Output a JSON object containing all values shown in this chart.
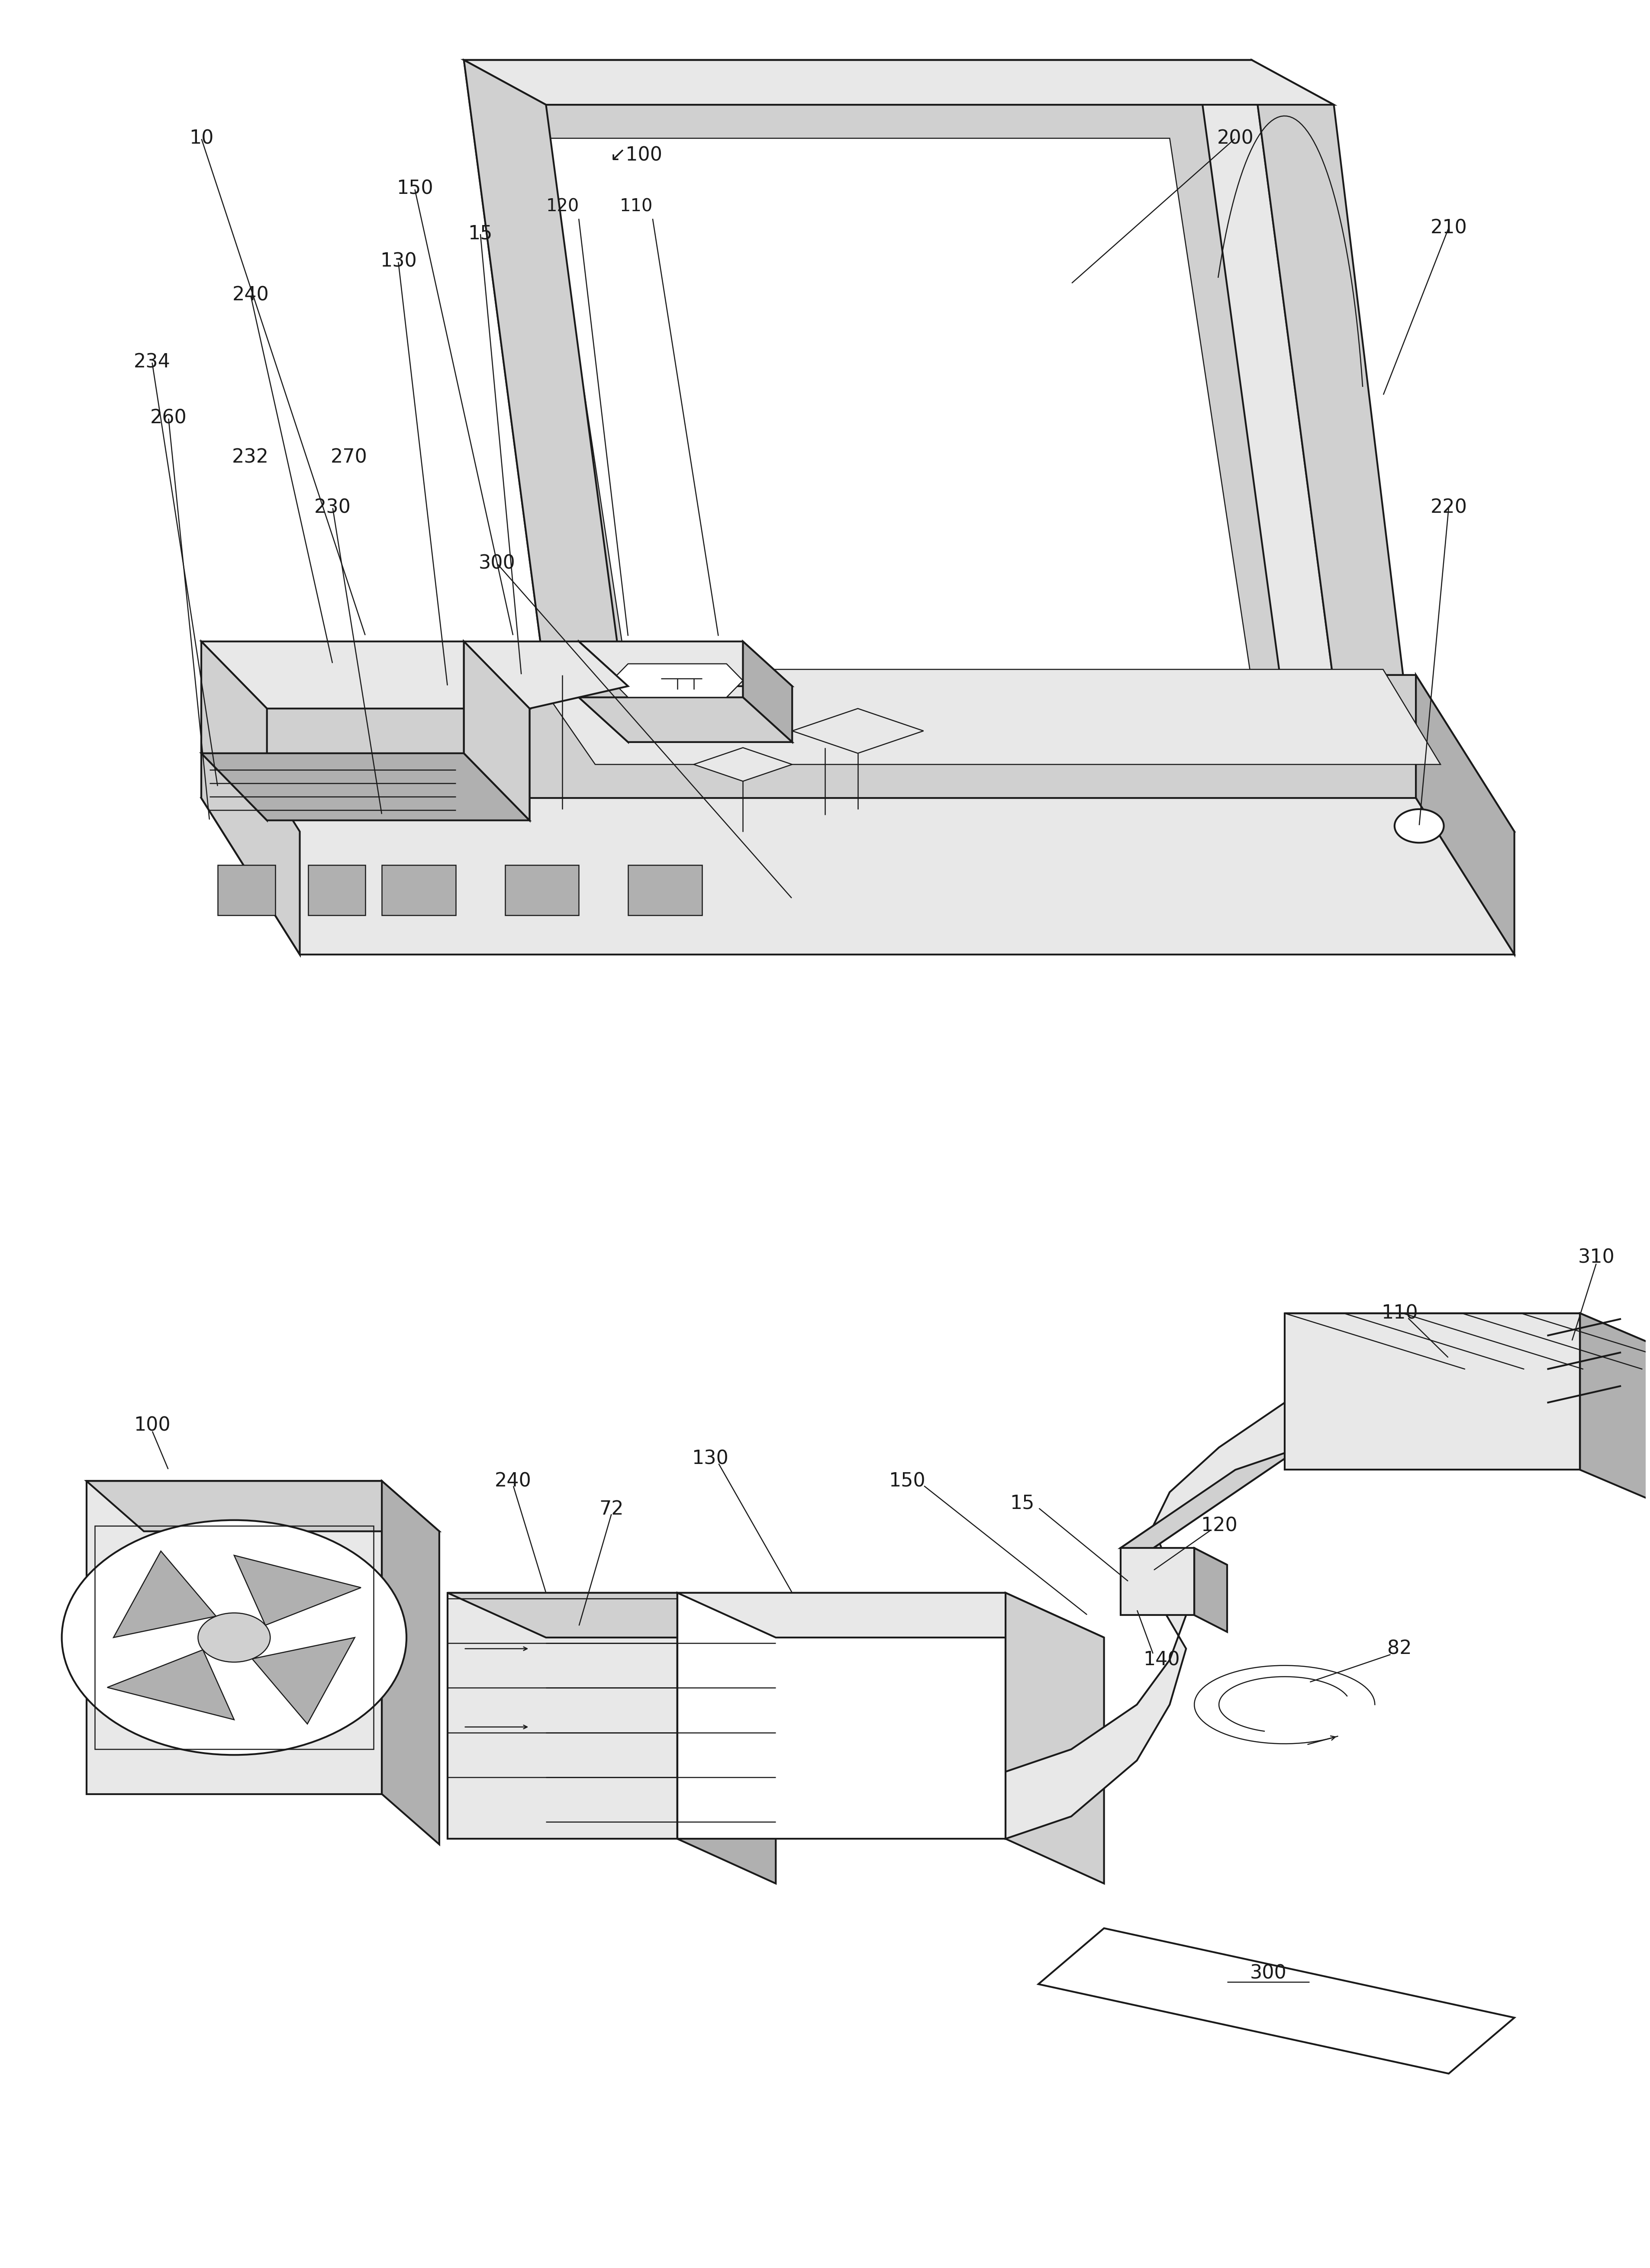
{
  "bg_color": "#ffffff",
  "lc": "#1a1a1a",
  "lw": 3.0,
  "tlw": 1.8,
  "fs": 32,
  "fig_width": 39.5,
  "fig_height": 53.83
}
